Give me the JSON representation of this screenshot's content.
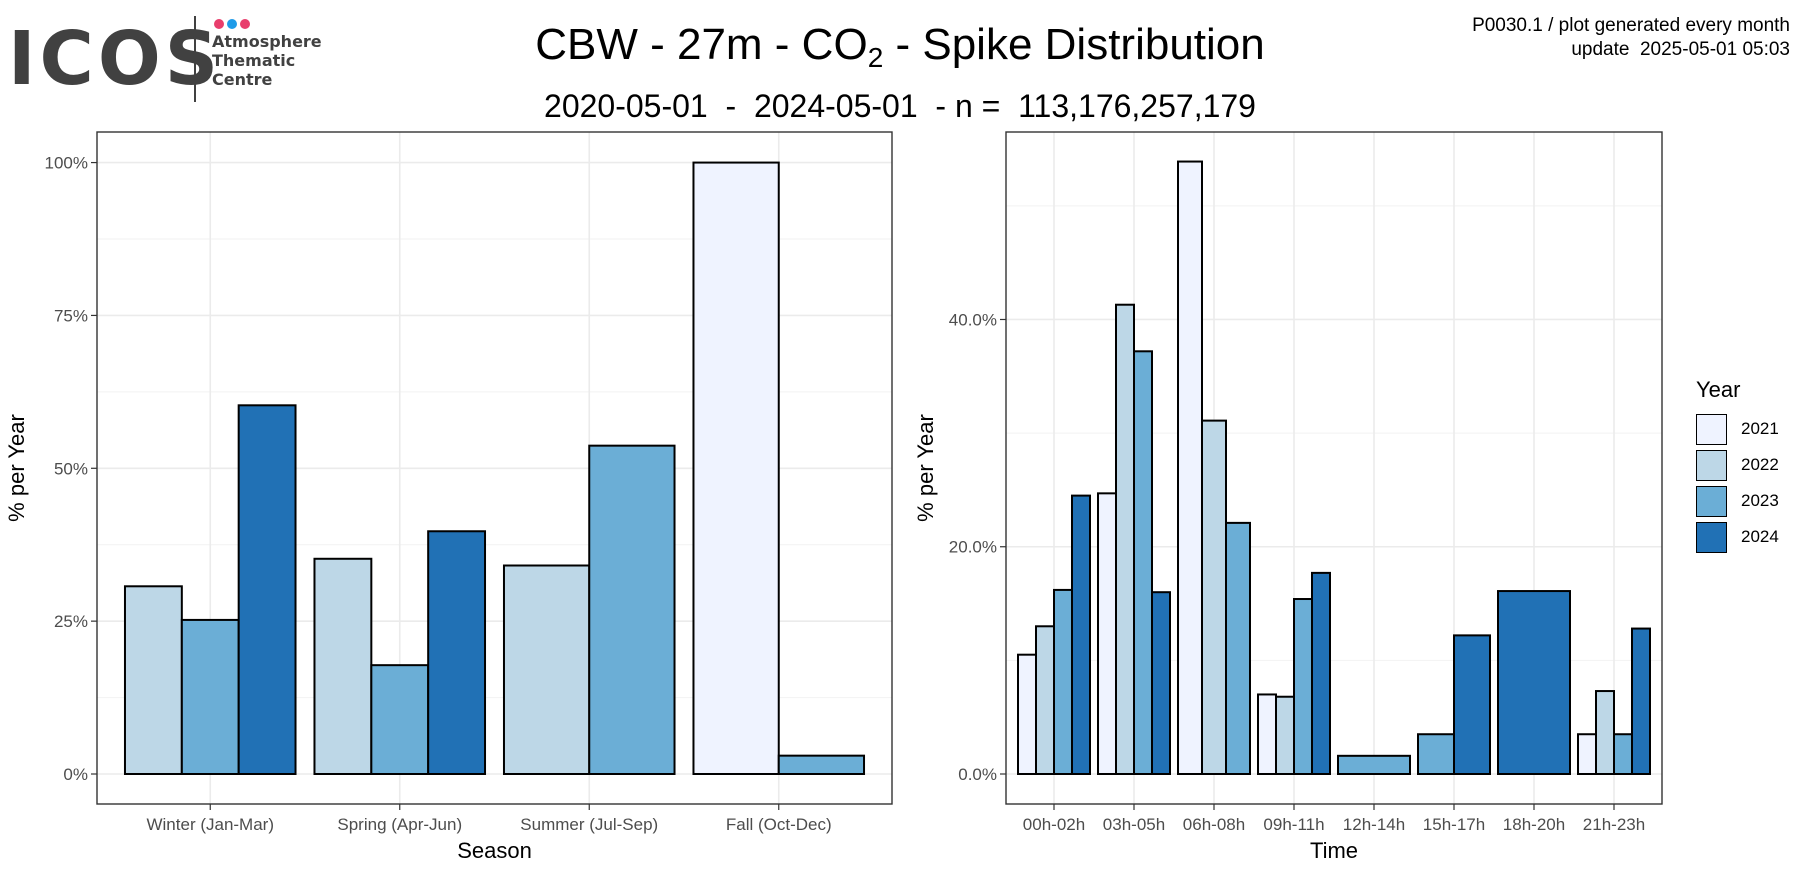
{
  "header": {
    "logo": {
      "brand": "ICOS",
      "lines": [
        "Atmosphere",
        "Thematic",
        "Centre"
      ],
      "dot_colors": [
        "#e83e6c",
        "#1e9be8",
        "#e83e6c"
      ]
    },
    "title_main": "CBW - 27m - CO",
    "title_sub": "2",
    "title_rest": " - Spike Distribution",
    "subtitle": "2020-05-01  -  2024-05-01  - n =  113,176,257,179",
    "meta_line1": "P0030.1 / plot generated every month",
    "meta_line2": "update  2025-05-01 05:03"
  },
  "legend": {
    "title": "Year",
    "items": [
      {
        "label": "2021",
        "color": "#eff3ff"
      },
      {
        "label": "2022",
        "color": "#bdd7e7"
      },
      {
        "label": "2023",
        "color": "#6baed6"
      },
      {
        "label": "2024",
        "color": "#2171b5"
      }
    ]
  },
  "chart_data": [
    {
      "type": "bar",
      "xlabel": "Season",
      "ylabel": "% per Year",
      "ylim": [
        0,
        1.05
      ],
      "yticks": [
        0,
        0.25,
        0.5,
        0.75,
        1.0
      ],
      "yticklabels": [
        "0%",
        "25%",
        "50%",
        "75%",
        "100%"
      ],
      "grid": true,
      "categories": [
        "Winter (Jan-Mar)",
        "Spring (Apr-Jun)",
        "Summer (Jul-Sep)",
        "Fall (Oct-Dec)"
      ],
      "series": [
        {
          "name": "2021",
          "values": [
            null,
            null,
            null,
            1.0
          ]
        },
        {
          "name": "2022",
          "values": [
            0.307,
            0.352,
            0.341,
            null
          ]
        },
        {
          "name": "2023",
          "values": [
            0.252,
            0.178,
            0.537,
            0.03
          ]
        },
        {
          "name": "2024",
          "values": [
            0.603,
            0.397,
            null,
            null
          ]
        }
      ]
    },
    {
      "type": "bar",
      "xlabel": "Time",
      "ylabel": "% per Year",
      "ylim": [
        0,
        0.565
      ],
      "yticks": [
        0,
        0.2,
        0.4
      ],
      "yticklabels": [
        "0.0%",
        "20.0%",
        "40.0%"
      ],
      "grid": true,
      "categories": [
        "00h-02h",
        "03h-05h",
        "06h-08h",
        "09h-11h",
        "12h-14h",
        "15h-17h",
        "18h-20h",
        "21h-23h"
      ],
      "series": [
        {
          "name": "2021",
          "values": [
            0.105,
            0.247,
            0.539,
            0.07,
            null,
            null,
            null,
            0.035
          ]
        },
        {
          "name": "2022",
          "values": [
            0.13,
            0.413,
            0.311,
            0.068,
            null,
            null,
            null,
            0.073
          ]
        },
        {
          "name": "2023",
          "values": [
            0.162,
            0.372,
            0.221,
            0.154,
            0.016,
            0.035,
            null,
            0.035
          ]
        },
        {
          "name": "2024",
          "values": [
            0.245,
            0.16,
            null,
            0.177,
            null,
            0.122,
            0.161,
            0.128
          ]
        }
      ]
    }
  ]
}
